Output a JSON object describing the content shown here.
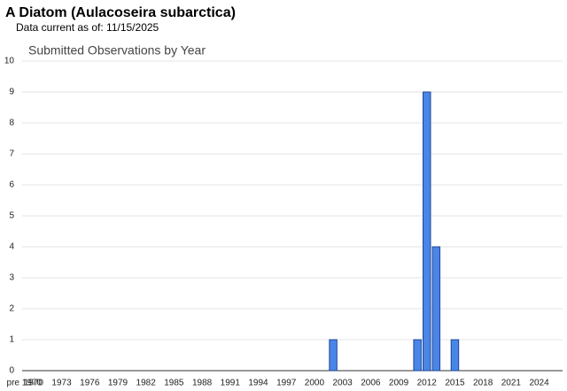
{
  "header": {
    "title": "A Diatom   (Aulacoseira subarctica)",
    "subtitle": "Data current as of: 11/15/2025"
  },
  "chart_data": {
    "type": "bar",
    "title": "Submitted Observations by Year",
    "categories": [
      "pre 1970",
      "1970",
      null,
      null,
      "1973",
      null,
      null,
      "1976",
      null,
      null,
      "1979",
      null,
      null,
      "1982",
      null,
      null,
      "1985",
      null,
      null,
      "1988",
      null,
      null,
      "1991",
      null,
      null,
      "1994",
      null,
      null,
      "1997",
      null,
      null,
      "2000",
      null,
      null,
      "2003",
      null,
      null,
      "2006",
      null,
      null,
      "2009",
      null,
      null,
      "2012",
      null,
      null,
      "2015",
      null,
      null,
      "2018",
      null,
      null,
      "2021",
      null,
      null,
      "2024",
      null,
      null
    ],
    "values": [
      0,
      0,
      0,
      0,
      0,
      0,
      0,
      0,
      0,
      0,
      0,
      0,
      0,
      0,
      0,
      0,
      0,
      0,
      0,
      0,
      0,
      0,
      0,
      0,
      0,
      0,
      0,
      0,
      0,
      0,
      0,
      0,
      0,
      1,
      0,
      0,
      0,
      0,
      0,
      0,
      0,
      0,
      1,
      9,
      4,
      0,
      1,
      0,
      0,
      0,
      0,
      0,
      0,
      0,
      0,
      0,
      0,
      0
    ],
    "color": "#4a86e8",
    "border_color": "#1c4595",
    "ylim": [
      0,
      10
    ],
    "yticks": [
      0,
      1,
      2,
      3,
      4,
      5,
      6,
      7,
      8,
      9,
      10
    ],
    "grid": true
  }
}
